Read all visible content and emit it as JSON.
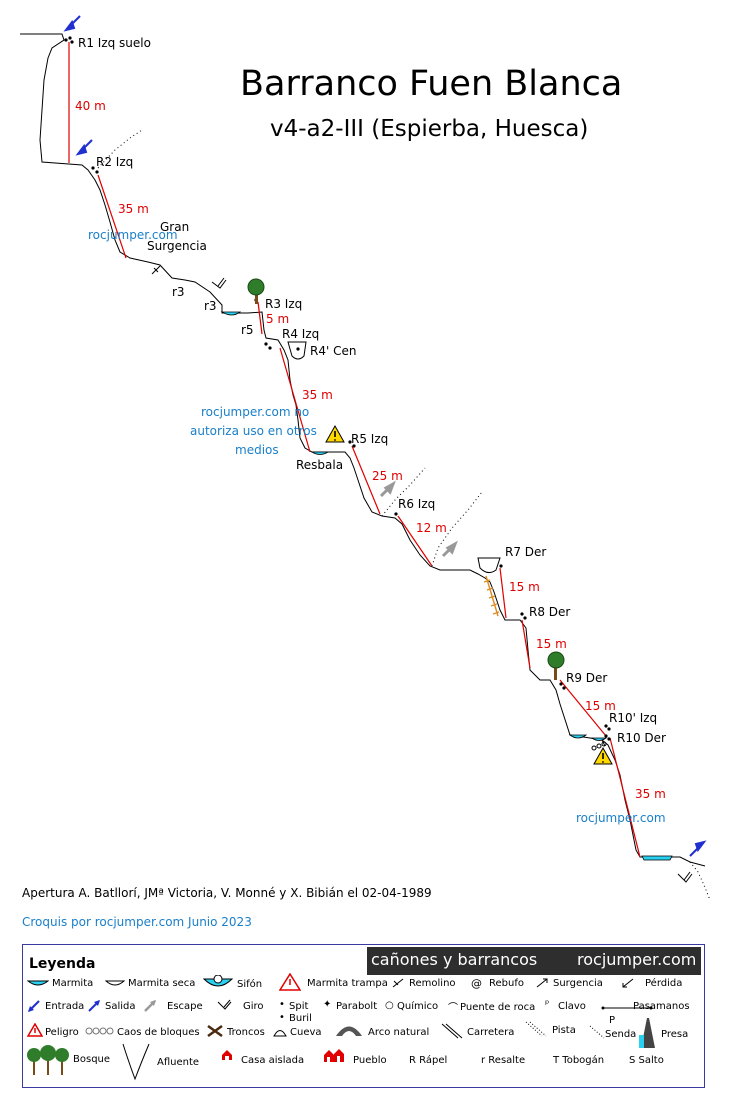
{
  "title": "Barranco Fuen Blanca",
  "subtitle": "v4-a2-III (Espierba, Huesca)",
  "stations": {
    "r1": "R1 Izq suelo",
    "r2": "R2 Izq",
    "r3": "R3 Izq",
    "r4": "R4 Izq",
    "r4c": "R4' Cen",
    "r5": "R5 Izq",
    "r6": "R6 Izq",
    "r7": "R7 Der",
    "r8": "R8 Der",
    "r9": "R9 Der",
    "r10b": "R10' Izq",
    "r10": "R10 Der"
  },
  "distances": {
    "d40": "40 m",
    "d35a": "35 m",
    "d5": "5 m",
    "d35b": "35 m",
    "d25": "25 m",
    "d12": "12 m",
    "d15a": "15 m",
    "d15b": "15 m",
    "d15c": "15 m",
    "d35c": "35 m"
  },
  "features": {
    "gran": "Gran",
    "surgencia": "Surgencia",
    "r3a": "r3",
    "r3b": "r3",
    "r5": "r5",
    "resbala": "Resbala"
  },
  "watermarks": {
    "w1": "rocjumper.com",
    "w2a": "rocjumper.com no",
    "w2b": "autoriza uso en otros",
    "w2c": "medios",
    "w3": "rocjumper.com"
  },
  "credit": "Apertura A. Batllorí, JMª Victoria, V. Monné y X. Bibián el 02-04-1989",
  "croquis": "Croquis por rocjumper.com Junio 2023",
  "legend": {
    "title": "Leyenda",
    "banner_left": "cañones y barrancos",
    "banner_right": "rocjumper.com",
    "items": {
      "marmita": "Marmita",
      "marmita_seca": "Marmita seca",
      "sifon": "Sifón",
      "marmita_trampa": "Marmita trampa",
      "remolino": "Remolino",
      "rebufo": "Rebufo",
      "surgencia": "Surgencia",
      "perdida": "Pérdida",
      "entrada": "Entrada",
      "salida": "Salida",
      "escape": "Escape",
      "giro": "Giro",
      "spit": "Spit",
      "buril": "Buril",
      "parabolt": "Parabolt",
      "quimico": "Químico",
      "puente": "Puente de roca",
      "clavo": "Clavo",
      "pasamanos": "Pasamanos",
      "pasamanos_p": "P",
      "peligro": "Peligro",
      "caos": "Caos de bloques",
      "troncos": "Troncos",
      "cueva": "Cueva",
      "arco": "Arco natural",
      "carretera": "Carretera",
      "pista": "Pista",
      "senda": "Senda",
      "presa": "Presa",
      "bosque": "Bosque",
      "afluente": "Afluente",
      "casa": "Casa aislada",
      "pueblo": "Pueblo",
      "rapel": "R Rápel",
      "resalte": "r Resalte",
      "tobogan": "T Tobogán",
      "salto": "S Salto"
    }
  },
  "colors": {
    "rope": "#e00000",
    "water": "#2ad0f0",
    "watermark": "#1a7fc9",
    "arrow": "#2030d0"
  }
}
